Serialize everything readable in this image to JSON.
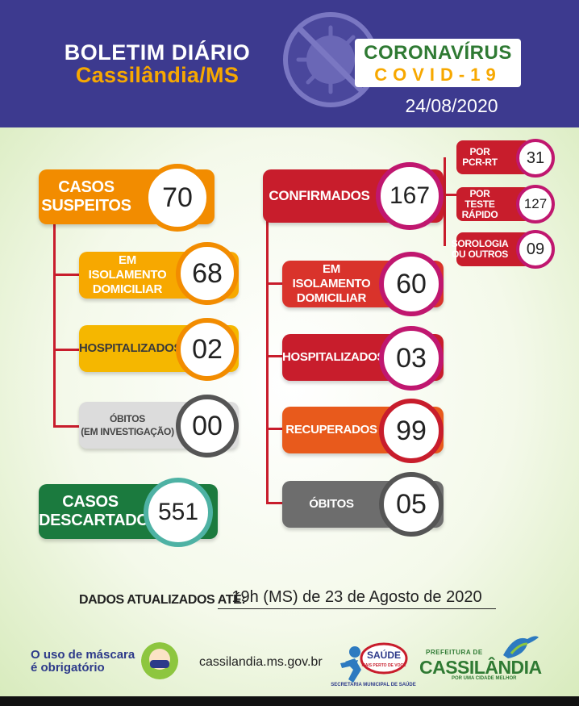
{
  "header": {
    "title_line1": "BOLETIM DIÁRIO",
    "title_line2": "Cassilândia/MS",
    "badge_top": "CORONAVÍRUS",
    "badge_bottom": "COVID-19",
    "date": "24/08/2020",
    "icon": "virus-prohibited-icon"
  },
  "suspeitos": {
    "label": "CASOS\nSUSPEITOS",
    "value": "70",
    "color": "#f28c00",
    "items": [
      {
        "label": "EM ISOLAMENTO\nDOMICILIAR",
        "value": "68",
        "color": "#f7a800"
      },
      {
        "label": "HOSPITALIZADOS",
        "value": "02",
        "color": "#f5b700"
      },
      {
        "label": "ÓBITOS\n(EM INVESTIGAÇÃO)",
        "value": "00",
        "color": "#dcdcdc"
      }
    ]
  },
  "descartados": {
    "label": "CASOS\nDESCARTADOS",
    "value": "551",
    "color": "#1b7a3e"
  },
  "confirmados": {
    "label": "CONFIRMADOS",
    "value": "167",
    "color": "#c81d2c",
    "items": [
      {
        "label": "EM ISOLAMENTO\nDOMICILIAR",
        "value": "60",
        "color": "#d9332b"
      },
      {
        "label": "HOSPITALIZADOS",
        "value": "03",
        "color": "#c81d2c"
      },
      {
        "label": "RECUPERADOS",
        "value": "99",
        "color": "#e85a1c"
      },
      {
        "label": "ÓBITOS",
        "value": "05",
        "color": "#6d6d6d"
      }
    ],
    "breakdown": [
      {
        "label": "POR\nPCR-RT",
        "value": "31"
      },
      {
        "label": "POR TESTE\nRÁPIDO",
        "value": "127"
      },
      {
        "label": "SOROLOGIA\nOU OUTROS",
        "value": "09"
      }
    ]
  },
  "footer": {
    "updated_label": "DADOS ATUALIZADOS ATÉ:",
    "updated_value": "19h (MS) de 23 de Agosto de 2020",
    "mask_line1": "O uso de máscara",
    "mask_line2": "é obrigatório",
    "mask_icon": "face-mask-icon",
    "website": "cassilandia.ms.gov.br",
    "saude_logo_text": "SAÚDE",
    "saude_logo_sub": "MAIS PERTO DE VOCÊ",
    "saude_caption": "SECRETARIA MUNICIPAL DE SAÚDE",
    "pref_top": "PREFEITURA DE",
    "pref_name": "CASSILÂNDIA",
    "pref_sub": "POR UMA CIDADE MELHOR"
  }
}
